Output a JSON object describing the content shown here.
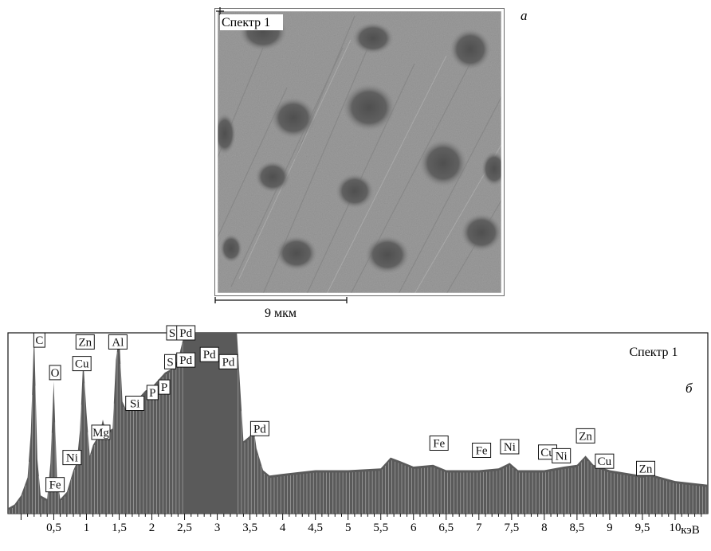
{
  "panel_a": {
    "label": "а",
    "spectrum_label": "Спектр 1",
    "scale_bar": "9 мкм"
  },
  "panel_b": {
    "label": "б",
    "spectrum_label": "Спектр 1"
  },
  "colors": {
    "spectrum_fill": "#5a5a5a",
    "axis": "#111111",
    "micrograph_base": "#9a9a9a",
    "micrograph_spot": "#5f5f5f"
  },
  "chart_data": {
    "type": "area",
    "title": "",
    "xlabel": "кэВ",
    "ylabel": "",
    "xlim": [
      -0.2,
      10.5
    ],
    "ylim": [
      0,
      100
    ],
    "x_ticks": [
      0.5,
      1,
      1.5,
      2,
      2.5,
      3,
      3.5,
      4,
      4.5,
      5,
      5.5,
      6,
      6.5,
      7,
      7.5,
      8,
      8.5,
      9,
      9.5,
      10
    ],
    "x_tick_labels": [
      "0,5",
      "1",
      "1,5",
      "2",
      "2,5",
      "3",
      "3,5",
      "4",
      "4,5",
      "5",
      "5,5",
      "6",
      "6,5",
      "7",
      "7,5",
      "8",
      "8,5",
      "9",
      "9,5",
      "10"
    ],
    "series": [
      {
        "name": "Спектр 1",
        "x": [
          -0.2,
          -0.1,
          0.0,
          0.1,
          0.15,
          0.2,
          0.25,
          0.3,
          0.4,
          0.45,
          0.5,
          0.55,
          0.6,
          0.7,
          0.8,
          0.85,
          0.9,
          0.95,
          1.0,
          1.05,
          1.1,
          1.2,
          1.25,
          1.3,
          1.4,
          1.45,
          1.5,
          1.55,
          1.6,
          1.7,
          1.8,
          1.9,
          2.0,
          2.1,
          2.2,
          2.3,
          2.4,
          2.5,
          2.6,
          2.7,
          2.8,
          2.9,
          3.0,
          3.1,
          3.15,
          3.2,
          3.25,
          3.3,
          3.4,
          3.5,
          3.55,
          3.6,
          3.7,
          3.8,
          4.0,
          4.5,
          5.0,
          5.5,
          5.65,
          5.8,
          6.0,
          6.3,
          6.5,
          7.0,
          7.3,
          7.47,
          7.6,
          8.0,
          8.3,
          8.5,
          8.63,
          8.75,
          9.0,
          9.5,
          9.6,
          10.0,
          10.5
        ],
        "y": [
          3,
          5,
          10,
          20,
          45,
          100,
          30,
          10,
          8,
          28,
          73,
          20,
          8,
          12,
          24,
          28,
          46,
          85,
          56,
          32,
          38,
          44,
          52,
          45,
          47,
          85,
          99,
          62,
          58,
          60,
          64,
          68,
          70,
          74,
          78,
          80,
          85,
          100,
          100,
          100,
          100,
          100,
          100,
          100,
          100,
          100,
          100,
          100,
          40,
          43,
          49,
          36,
          24,
          21,
          22,
          24,
          24,
          25,
          31,
          29,
          26,
          27,
          24,
          24,
          25,
          28,
          24,
          24,
          26,
          27,
          32,
          27,
          24,
          21,
          22,
          18,
          16
        ]
      }
    ],
    "peak_labels": [
      {
        "text": "C",
        "x": 0.28,
        "y": 96
      },
      {
        "text": "O",
        "x": 0.52,
        "y": 78
      },
      {
        "text": "Fe",
        "x": 0.52,
        "y": 16
      },
      {
        "text": "Ni",
        "x": 0.78,
        "y": 31
      },
      {
        "text": "Zn",
        "x": 0.98,
        "y": 95
      },
      {
        "text": "Cu",
        "x": 0.93,
        "y": 83
      },
      {
        "text": "Mg",
        "x": 1.22,
        "y": 45
      },
      {
        "text": "Al",
        "x": 1.48,
        "y": 95
      },
      {
        "text": "Si",
        "x": 1.74,
        "y": 61
      },
      {
        "text": "P",
        "x": 2.01,
        "y": 67
      },
      {
        "text": "P",
        "x": 2.19,
        "y": 70
      },
      {
        "text": "S",
        "x": 2.31,
        "y": 100
      },
      {
        "text": "S",
        "x": 2.28,
        "y": 84
      },
      {
        "text": "Pd",
        "x": 2.52,
        "y": 100
      },
      {
        "text": "Pd",
        "x": 2.52,
        "y": 85
      },
      {
        "text": "Pd",
        "x": 2.88,
        "y": 88
      },
      {
        "text": "Pd",
        "x": 3.17,
        "y": 84
      },
      {
        "text": "Pd",
        "x": 3.65,
        "y": 47
      },
      {
        "text": "Fe",
        "x": 6.39,
        "y": 39
      },
      {
        "text": "Fe",
        "x": 7.04,
        "y": 35
      },
      {
        "text": "Ni",
        "x": 7.47,
        "y": 37
      },
      {
        "text": "Cu",
        "x": 8.05,
        "y": 34
      },
      {
        "text": "Ni",
        "x": 8.26,
        "y": 32
      },
      {
        "text": "Zn",
        "x": 8.63,
        "y": 43
      },
      {
        "text": "Cu",
        "x": 8.92,
        "y": 29
      },
      {
        "text": "Zn",
        "x": 9.55,
        "y": 25
      }
    ],
    "grid": false,
    "legend": "none"
  }
}
